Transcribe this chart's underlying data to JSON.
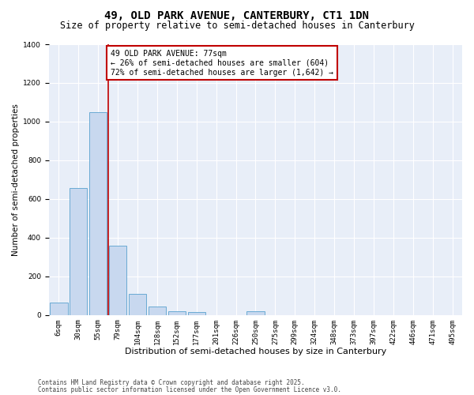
{
  "title1": "49, OLD PARK AVENUE, CANTERBURY, CT1 1DN",
  "title2": "Size of property relative to semi-detached houses in Canterbury",
  "xlabel": "Distribution of semi-detached houses by size in Canterbury",
  "ylabel": "Number of semi-detached properties",
  "categories": [
    "6sqm",
    "30sqm",
    "55sqm",
    "79sqm",
    "104sqm",
    "128sqm",
    "152sqm",
    "177sqm",
    "201sqm",
    "226sqm",
    "250sqm",
    "275sqm",
    "299sqm",
    "324sqm",
    "348sqm",
    "373sqm",
    "397sqm",
    "422sqm",
    "446sqm",
    "471sqm",
    "495sqm"
  ],
  "values": [
    65,
    655,
    1050,
    360,
    110,
    45,
    20,
    15,
    0,
    0,
    20,
    0,
    0,
    0,
    0,
    0,
    0,
    0,
    0,
    0,
    0
  ],
  "bar_color": "#c8d8ef",
  "bar_edge_color": "#6aaad4",
  "vline_color": "#c00000",
  "annotation_text": "49 OLD PARK AVENUE: 77sqm\n← 26% of semi-detached houses are smaller (604)\n72% of semi-detached houses are larger (1,642) →",
  "annotation_box_color": "#c00000",
  "ylim": [
    0,
    1400
  ],
  "yticks": [
    0,
    200,
    400,
    600,
    800,
    1000,
    1200,
    1400
  ],
  "background_color": "#e8eef8",
  "grid_color": "#ffffff",
  "footer1": "Contains HM Land Registry data © Crown copyright and database right 2025.",
  "footer2": "Contains public sector information licensed under the Open Government Licence v3.0.",
  "title1_fontsize": 10,
  "title2_fontsize": 8.5,
  "xlabel_fontsize": 8,
  "ylabel_fontsize": 7.5,
  "tick_fontsize": 6.5,
  "annotation_fontsize": 7,
  "footer_fontsize": 5.5
}
